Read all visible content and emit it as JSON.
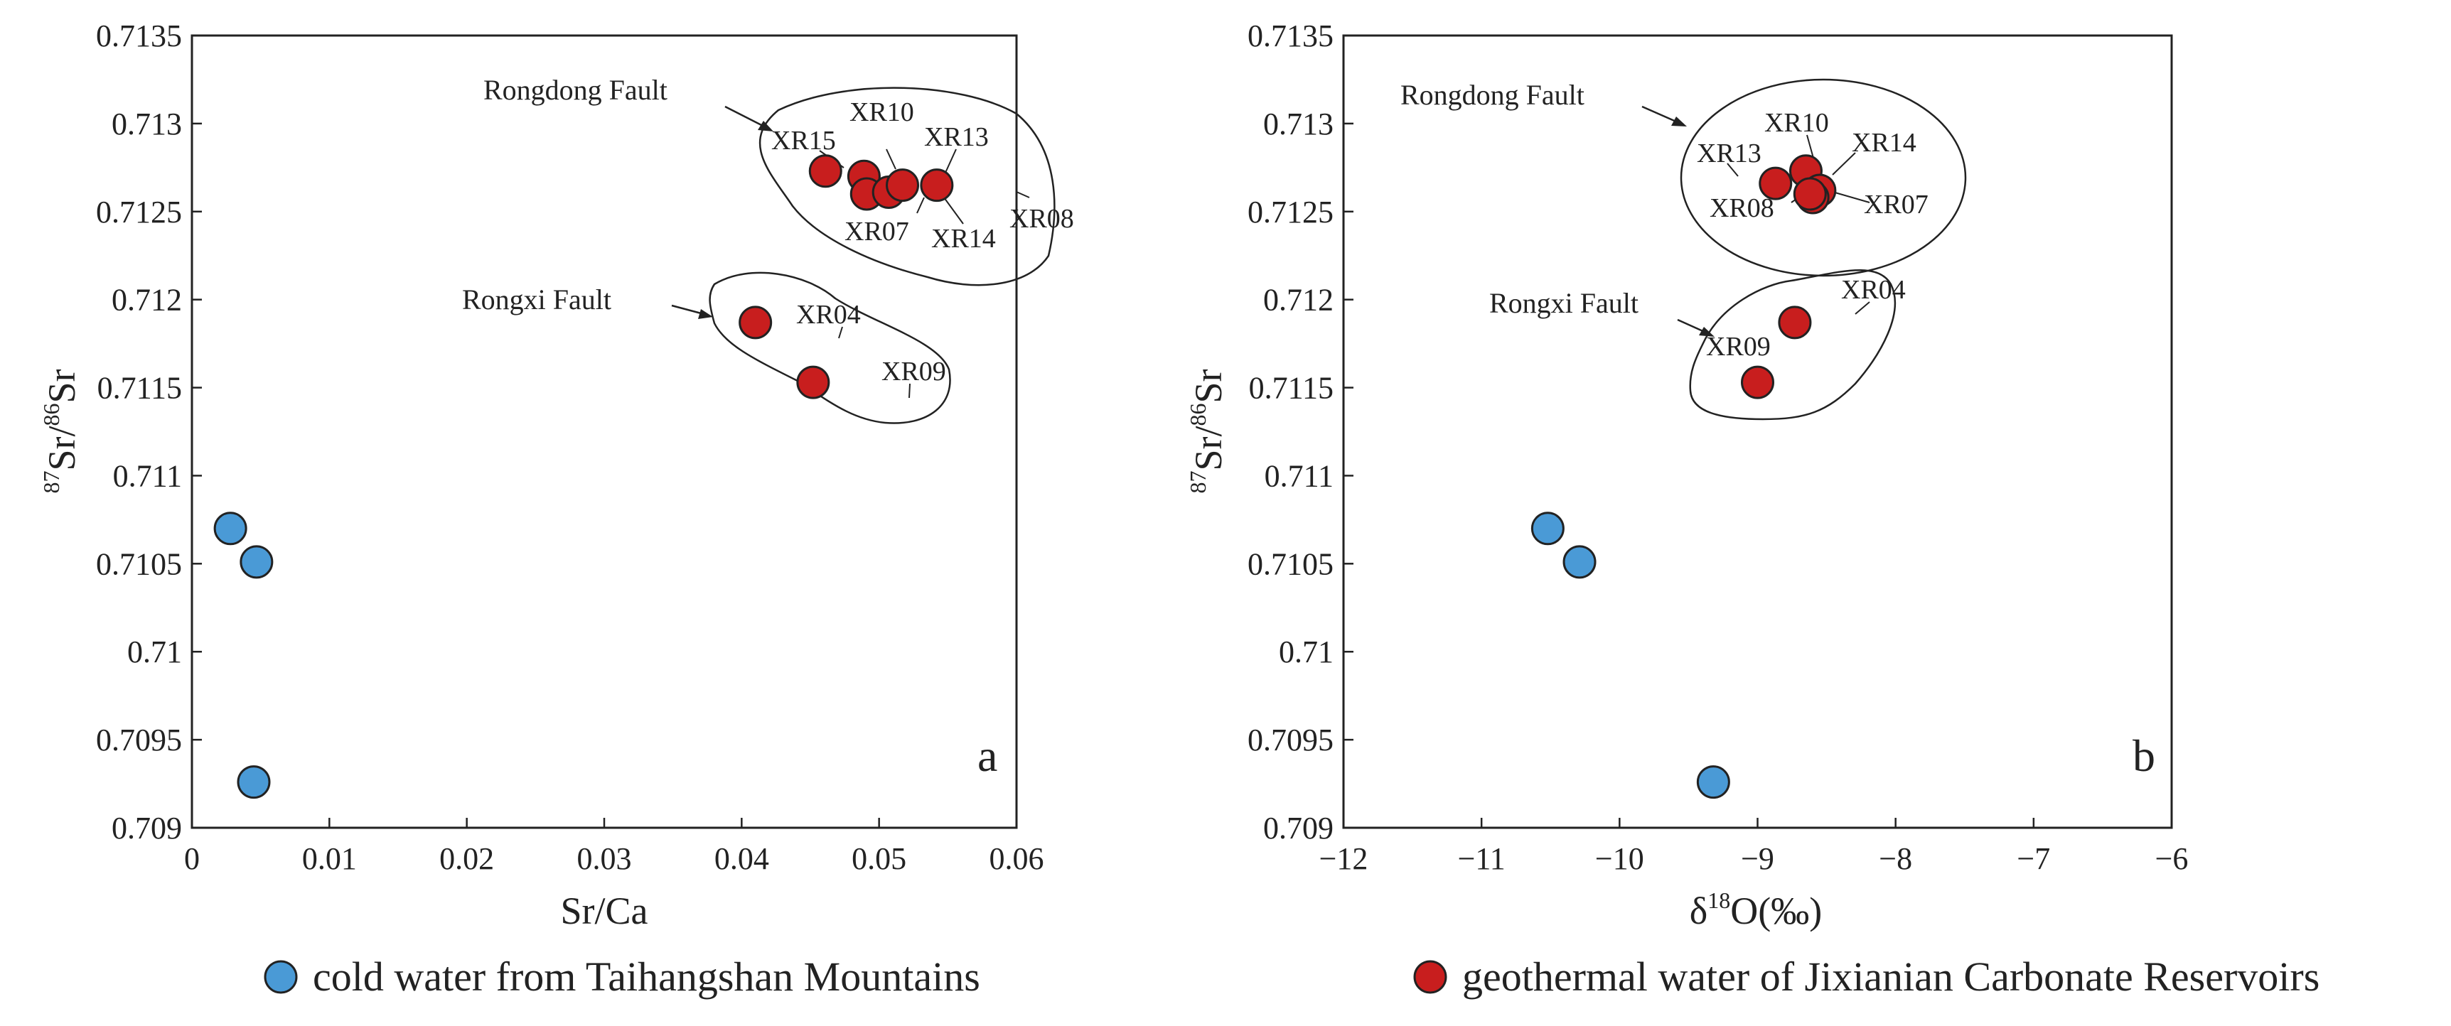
{
  "chart_data": [
    {
      "type": "scatter",
      "panel": "a",
      "xlabel": "Sr/Ca",
      "ylabel_parts": [
        "87",
        "Sr/",
        "86",
        "Sr"
      ],
      "xlim": [
        0,
        0.06
      ],
      "ylim": [
        0.709,
        0.7135
      ],
      "xticks": [
        "0",
        "0.01",
        "0.02",
        "0.03",
        "0.04",
        "0.05",
        "0.06"
      ],
      "yticks": [
        "0.709",
        "0.7095",
        "0.71",
        "0.7105",
        "0.711",
        "0.7115",
        "0.712",
        "0.7125",
        "0.713",
        "0.7135"
      ],
      "series": [
        {
          "name": "cold water from Taihangshan Mountains",
          "color": "#4a9ad6",
          "points": [
            {
              "x": 0.0028,
              "y": 0.7107
            },
            {
              "x": 0.0047,
              "y": 0.71051
            },
            {
              "x": 0.0045,
              "y": 0.70926
            }
          ]
        },
        {
          "name": "geothermal water of Jixianian Carbonate Reservoirs",
          "color": "#c81e1e",
          "points": [
            {
              "x": 0.0461,
              "y": 0.71273,
              "label": "XR15"
            },
            {
              "x": 0.0489,
              "y": 0.7127,
              "label": "XR10"
            },
            {
              "x": 0.0491,
              "y": 0.7126,
              "label": "XR07"
            },
            {
              "x": 0.0507,
              "y": 0.71261,
              "label": "XR14"
            },
            {
              "x": 0.0517,
              "y": 0.71265,
              "label": "XR13"
            },
            {
              "x": 0.0542,
              "y": 0.71265,
              "label": "XR08"
            },
            {
              "x": 0.041,
              "y": 0.71187,
              "label": "XR04"
            },
            {
              "x": 0.0452,
              "y": 0.71153,
              "label": "XR09"
            }
          ]
        }
      ],
      "groups": [
        {
          "name": "Rongdong Fault",
          "members": [
            "XR15",
            "XR10",
            "XR07",
            "XR14",
            "XR13",
            "XR08"
          ]
        },
        {
          "name": "Rongxi Fault",
          "members": [
            "XR04",
            "XR09"
          ]
        }
      ]
    },
    {
      "type": "scatter",
      "panel": "b",
      "xlabel_parts": [
        "δ",
        "18",
        "O(‰)"
      ],
      "ylabel_parts": [
        "87",
        "Sr/",
        "86",
        "Sr"
      ],
      "xlim": [
        -12,
        -6
      ],
      "ylim": [
        0.709,
        0.7135
      ],
      "xticks": [
        "−12",
        "−11",
        "−10",
        "−9",
        "−8",
        "−7",
        "−6"
      ],
      "yticks": [
        "0.709",
        "0.7095",
        "0.71",
        "0.7105",
        "0.711",
        "0.7115",
        "0.712",
        "0.7125",
        "0.713",
        "0.7135"
      ],
      "series": [
        {
          "name": "cold water from Taihangshan Mountains",
          "color": "#4a9ad6",
          "points": [
            {
              "x": -10.52,
              "y": 0.7107
            },
            {
              "x": -10.29,
              "y": 0.71051
            },
            {
              "x": -9.32,
              "y": 0.70926
            }
          ]
        },
        {
          "name": "geothermal water of Jixianian Carbonate Reservoirs",
          "color": "#c81e1e",
          "points": [
            {
              "x": -8.87,
              "y": 0.71266,
              "label": "XR13"
            },
            {
              "x": -8.65,
              "y": 0.71273,
              "label": "XR10"
            },
            {
              "x": -8.55,
              "y": 0.71262,
              "label": "XR14"
            },
            {
              "x": -8.6,
              "y": 0.71258,
              "label": "XR07"
            },
            {
              "x": -8.62,
              "y": 0.7126,
              "label": "XR08"
            },
            {
              "x": -8.73,
              "y": 0.71187,
              "label": "XR04"
            },
            {
              "x": -9.0,
              "y": 0.71153,
              "label": "XR09"
            }
          ]
        }
      ],
      "groups": [
        {
          "name": "Rongdong Fault",
          "members": [
            "XR13",
            "XR10",
            "XR14",
            "XR07",
            "XR08"
          ]
        },
        {
          "name": "Rongxi Fault",
          "members": [
            "XR04",
            "XR09"
          ]
        }
      ]
    }
  ],
  "legend": [
    {
      "label": "cold water from Taihangshan Mountains",
      "color": "#4a9ad6"
    },
    {
      "label": "geothermal water of Jixianian Carbonate Reservoirs",
      "color": "#c81e1e"
    }
  ]
}
